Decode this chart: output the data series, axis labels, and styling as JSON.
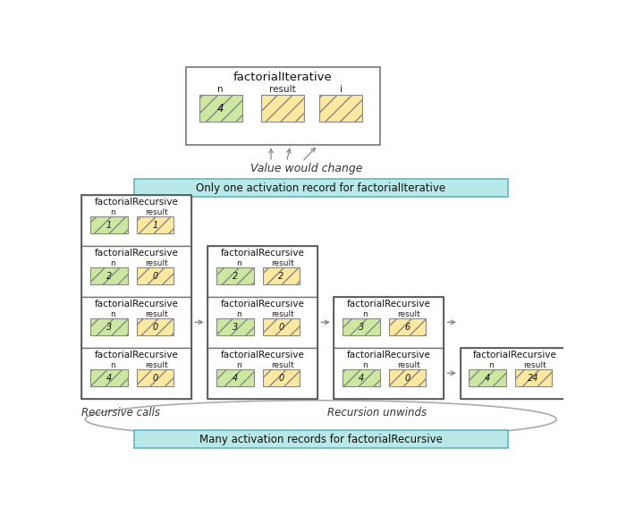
{
  "bg_color": "#ffffff",
  "one_record_label": "Only one activation record for factorialIterative",
  "value_change_label": "Value would change",
  "many_records_label": "Many activation records for factorialRecursive",
  "recursive_calls_label": "Recursive calls",
  "recursion_unwinds_label": "Recursion unwinds",
  "green_color": "#cce8a0",
  "orange_color": "#fde8a0",
  "teal_bg": "#b8e8e8",
  "teal_border": "#60b8c0",
  "arrow_color": "#888888",
  "box_edge": "#777777",
  "col1_boxes": [
    {
      "n": "1",
      "result": "1"
    },
    {
      "n": "2",
      "result": "0"
    },
    {
      "n": "3",
      "result": "0"
    },
    {
      "n": "4",
      "result": "0"
    }
  ],
  "col2_boxes": [
    {
      "n": "2",
      "result": "2"
    },
    {
      "n": "3",
      "result": "0"
    },
    {
      "n": "4",
      "result": "0"
    }
  ],
  "col3_boxes": [
    {
      "n": "3",
      "result": "6"
    },
    {
      "n": "4",
      "result": "0"
    }
  ],
  "col4_boxes": [
    {
      "n": "4",
      "result": "24"
    }
  ]
}
